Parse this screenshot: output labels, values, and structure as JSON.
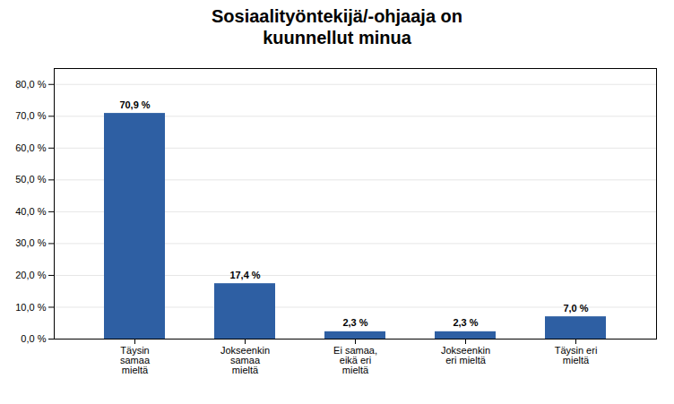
{
  "chart_data": {
    "type": "bar",
    "title": "Sosiaalityöntekijä/-ohjaaja on\nkuunnellut minua",
    "categories": [
      "Täysin\nsamaa\nmieltä",
      "Jokseenkin\nsamaa\nmieltä",
      "Ei samaa,\neikä eri\nmieltä",
      "Jokseenkin\neri mieltä",
      "Täysin eri\nmieltä"
    ],
    "values": [
      70.9,
      17.4,
      2.3,
      2.3,
      7.0
    ],
    "value_labels": [
      "70,9 %",
      "17,4 %",
      "2,3 %",
      "2,3 %",
      "7,0 %"
    ],
    "data_labels": true,
    "color": "#2E5FA3",
    "ylim": [
      0,
      85
    ],
    "yticks": [
      {
        "value": 0,
        "label": "0,0 %"
      },
      {
        "value": 10,
        "label": "10,0 %"
      },
      {
        "value": 20,
        "label": "20,0 %"
      },
      {
        "value": 30,
        "label": "30,0 %"
      },
      {
        "value": 40,
        "label": "40,0 %"
      },
      {
        "value": 50,
        "label": "50,0 %"
      },
      {
        "value": 60,
        "label": "60,0 %"
      },
      {
        "value": 70,
        "label": "70,0 %"
      },
      {
        "value": 80,
        "label": "80,0 %"
      }
    ],
    "grid": true
  }
}
